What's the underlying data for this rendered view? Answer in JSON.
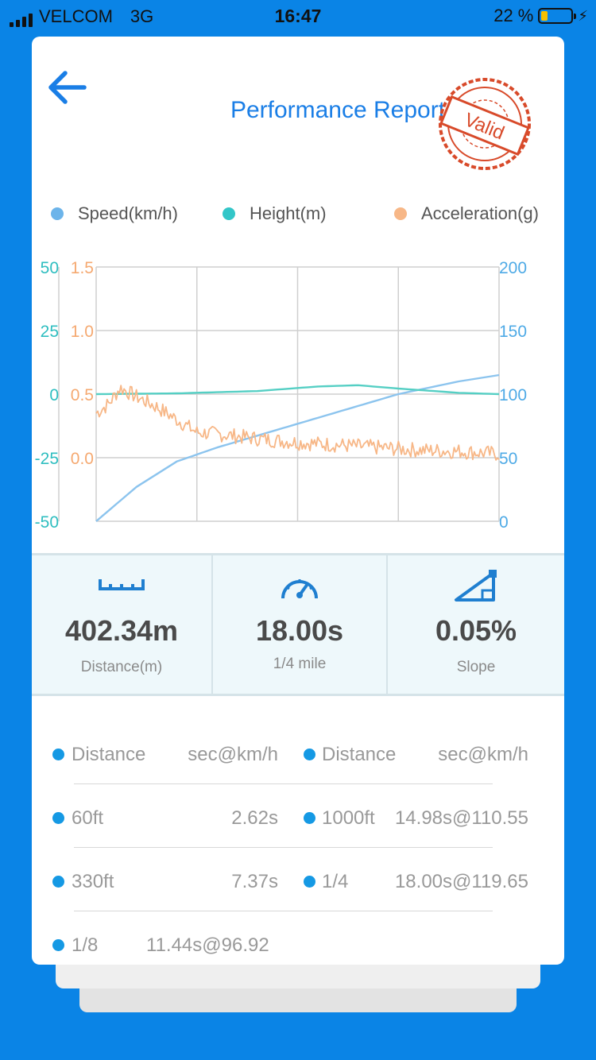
{
  "status_bar": {
    "carrier": "VELCOM",
    "network": "3G",
    "time": "16:47",
    "battery": "22 %",
    "battery_level": 0.22
  },
  "header": {
    "title": "Performance Report",
    "stamp_text": "Valid"
  },
  "legend": [
    {
      "label": "Speed(km/h)",
      "color": "#6cb4ea"
    },
    {
      "label": "Height(m)",
      "color": "#33c6c8"
    },
    {
      "label": "Acceleration(g)",
      "color": "#f7b787"
    }
  ],
  "chart_data": {
    "type": "line",
    "series": [
      {
        "name": "Speed(km/h)",
        "axis": "right",
        "color": "#8cc4ee",
        "x": [
          0,
          0.1,
          0.2,
          0.3,
          0.45,
          0.6,
          0.75,
          0.9,
          1.0
        ],
        "values": [
          0,
          27,
          47,
          58,
          72,
          86,
          100,
          110,
          115
        ]
      },
      {
        "name": "Height(m)",
        "axis": "left1",
        "color": "#55cfc4",
        "x": [
          0,
          0.2,
          0.4,
          0.55,
          0.65,
          0.75,
          0.9,
          1.0
        ],
        "values": [
          0,
          0.3,
          1.2,
          3.0,
          3.5,
          2.2,
          0.5,
          0
        ]
      },
      {
        "name": "Acceleration(g)",
        "axis": "left2",
        "color": "#f7b787",
        "x": [
          0,
          0.03,
          0.06,
          0.1,
          0.15,
          0.2,
          0.25,
          0.32,
          0.4,
          0.5,
          0.6,
          0.7,
          0.8,
          0.9,
          1.0
        ],
        "values": [
          0.35,
          0.42,
          0.55,
          0.48,
          0.4,
          0.3,
          0.2,
          0.18,
          0.15,
          0.12,
          0.1,
          0.08,
          0.06,
          0.05,
          0.03
        ]
      }
    ],
    "axes": {
      "left1": {
        "ticks": [
          "50",
          "25",
          "0",
          "-25",
          "-50"
        ],
        "ylim": [
          -50,
          50
        ],
        "color": "#2fbec0"
      },
      "left2": {
        "ticks": [
          "1.5",
          "1.0",
          "0.5",
          "0.0"
        ],
        "ylim": [
          -0.5,
          1.5
        ],
        "color": "#f5a971"
      },
      "right": {
        "ticks": [
          "200",
          "150",
          "100",
          "50",
          "0"
        ],
        "ylim": [
          0,
          200
        ],
        "color": "#4eaae6"
      }
    },
    "grid": true
  },
  "stats": [
    {
      "value": "402.34m",
      "label": "Distance(m)",
      "icon": "ruler-icon"
    },
    {
      "value": "18.00s",
      "label": "1/4 mile",
      "icon": "speedometer-icon"
    },
    {
      "value": "0.05%",
      "label": "Slope",
      "icon": "slope-icon"
    }
  ],
  "table": {
    "header": {
      "left_label": "Distance",
      "left_value": "sec@km/h",
      "right_label": "Distance",
      "right_value": "sec@km/h"
    },
    "rows": [
      {
        "left_label": "60ft",
        "left_value": "2.62s",
        "right_label": "1000ft",
        "right_value": "14.98s@110.55"
      },
      {
        "left_label": "330ft",
        "left_value": "7.37s",
        "right_label": "1/4",
        "right_value": "18.00s@119.65"
      },
      {
        "left_label": "1/8",
        "left_value": "11.44s@96.92"
      }
    ]
  }
}
